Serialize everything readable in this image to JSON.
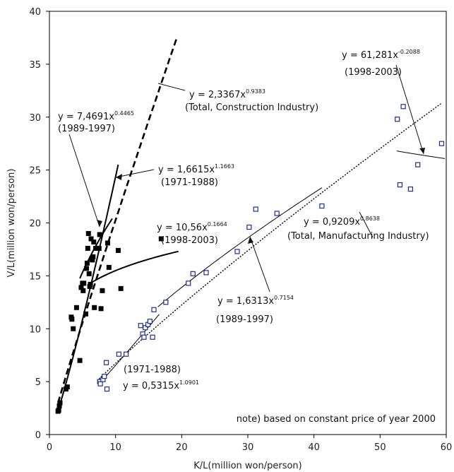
{
  "chart_data": {
    "type": "scatter",
    "xlabel": "K/L(million won/person)",
    "ylabel": "V/L(million won/person)",
    "xlim": [
      0,
      60
    ],
    "ylim": [
      0,
      40
    ],
    "xticks": [
      0,
      10,
      20,
      30,
      40,
      50,
      60
    ],
    "yticks": [
      0,
      5,
      10,
      15,
      20,
      25,
      30,
      35,
      40
    ],
    "grid": false,
    "note": "note) based on constant price of year 2000",
    "series": [
      {
        "marker": "filled-square",
        "color": "#000000",
        "points": [
          [
            1.3,
            2.2
          ],
          [
            1.4,
            2.3
          ],
          [
            1.5,
            2.7
          ],
          [
            1.6,
            3.0
          ],
          [
            2.5,
            4.3
          ],
          [
            2.7,
            4.5
          ],
          [
            3.3,
            11.1
          ],
          [
            3.4,
            10.9
          ],
          [
            3.6,
            10.0
          ],
          [
            4.1,
            12.0
          ],
          [
            4.6,
            7.0
          ],
          [
            4.8,
            13.9
          ],
          [
            5.0,
            14.3
          ],
          [
            5.1,
            13.6
          ],
          [
            5.2,
            14.3
          ],
          [
            5.5,
            11.4
          ],
          [
            5.6,
            15.7
          ],
          [
            5.7,
            16.2
          ],
          [
            5.8,
            17.6
          ],
          [
            5.9,
            19.0
          ],
          [
            6.0,
            15.2
          ],
          [
            6.1,
            14.0
          ],
          [
            6.2,
            14.2
          ],
          [
            6.3,
            18.5
          ],
          [
            6.4,
            16.6
          ],
          [
            6.5,
            16.5
          ],
          [
            6.6,
            16.8
          ],
          [
            6.7,
            18.2
          ],
          [
            6.8,
            12.0
          ],
          [
            7.0,
            17.6
          ],
          [
            7.2,
            17.6
          ],
          [
            7.5,
            17.6
          ],
          [
            7.6,
            18.9
          ],
          [
            7.8,
            11.9
          ],
          [
            8.0,
            13.6
          ],
          [
            8.8,
            18.1
          ],
          [
            9.0,
            15.8
          ],
          [
            10.4,
            17.4
          ],
          [
            10.8,
            13.8
          ],
          [
            16.9,
            18.5
          ]
        ]
      },
      {
        "marker": "open-square",
        "color": "#1c2f8f",
        "points": [
          [
            7.6,
            5.0
          ],
          [
            7.7,
            4.8
          ],
          [
            8.1,
            5.2
          ],
          [
            8.3,
            5.5
          ],
          [
            8.6,
            6.8
          ],
          [
            8.7,
            4.3
          ],
          [
            10.5,
            7.6
          ],
          [
            11.6,
            7.6
          ],
          [
            13.8,
            10.3
          ],
          [
            14.1,
            9.5
          ],
          [
            14.3,
            9.2
          ],
          [
            14.5,
            10.1
          ],
          [
            14.9,
            10.4
          ],
          [
            15.2,
            10.7
          ],
          [
            15.6,
            9.2
          ],
          [
            15.8,
            11.8
          ],
          [
            17.6,
            12.5
          ],
          [
            21.0,
            14.3
          ],
          [
            21.7,
            15.2
          ],
          [
            23.7,
            15.3
          ],
          [
            28.4,
            17.3
          ],
          [
            30.2,
            19.6
          ],
          [
            31.2,
            21.3
          ],
          [
            34.4,
            20.9
          ],
          [
            41.2,
            21.6
          ],
          [
            52.6,
            29.8
          ],
          [
            53.0,
            23.6
          ],
          [
            53.5,
            31.0
          ],
          [
            54.6,
            23.2
          ],
          [
            55.7,
            25.5
          ],
          [
            59.3,
            27.5
          ]
        ]
      }
    ],
    "fitted_curves": [
      {
        "label": "(1971-1988)",
        "coef": 1.6615,
        "exp": 1.1663,
        "x_range": [
          1.3,
          10.4
        ],
        "style": "solid-bold"
      },
      {
        "label": "(1989-1997)",
        "coef": 7.4691,
        "exp": 0.4465,
        "x_range": [
          4.6,
          9.5
        ],
        "style": "solid-bold"
      },
      {
        "label": "(1998-2003)",
        "coef": 10.56,
        "exp": 0.1664,
        "x_range": [
          6.3,
          19.5
        ],
        "style": "solid-bold"
      },
      {
        "label": "(Total, Construction Industry)",
        "coef": 2.3367,
        "exp": 0.9383,
        "x_range": [
          1.3,
          19.3
        ],
        "style": "dashed-bold"
      },
      {
        "label": "(1971-1988)",
        "coef": 0.5315,
        "exp": 1.0901,
        "x_range": [
          7.4,
          16.6
        ],
        "style": "solid-thin"
      },
      {
        "label": "(1989-1997)",
        "coef": 1.6313,
        "exp": 0.7154,
        "x_range": [
          16.4,
          41.2
        ],
        "style": "solid-thin"
      },
      {
        "label": "(1998-2003)",
        "coef": 61.281,
        "exp": -0.2088,
        "x_range": [
          52.5,
          59.8
        ],
        "style": "solid-thin"
      },
      {
        "label": "(Total, Manufacturing Industry)",
        "coef": 0.9209,
        "exp": 0.8638,
        "x_range": [
          7.5,
          59.3
        ],
        "style": "dotted"
      }
    ],
    "annotations": [
      {
        "eq_base": "y = 7,4691x",
        "eq_exp": "0.4465",
        "period": "(1989-1997)"
      },
      {
        "eq_base": "y = 2,3367x",
        "eq_exp": "0.9383",
        "period": "(Total, Construction Industry)"
      },
      {
        "eq_base": "y = 1,6615x",
        "eq_exp": "1.1663",
        "period": "(1971-1988)"
      },
      {
        "eq_base": "y = 10,56x",
        "eq_exp": "0.1664",
        "period": "(1998-2003)"
      },
      {
        "eq_base": "y = 61,281x",
        "eq_exp": "-0.2088",
        "period": "(1998-2003)"
      },
      {
        "eq_base": "y = 0,9209x",
        "eq_exp": "0.8638",
        "period": "(Total, Manufacturing Industry)"
      },
      {
        "eq_base": "y = 1,6313x",
        "eq_exp": "0.7154",
        "period": "(1989-1997)"
      },
      {
        "eq_base": "y = 0,5315x",
        "eq_exp": "1.0901",
        "period": "(1971-1988)"
      }
    ]
  }
}
